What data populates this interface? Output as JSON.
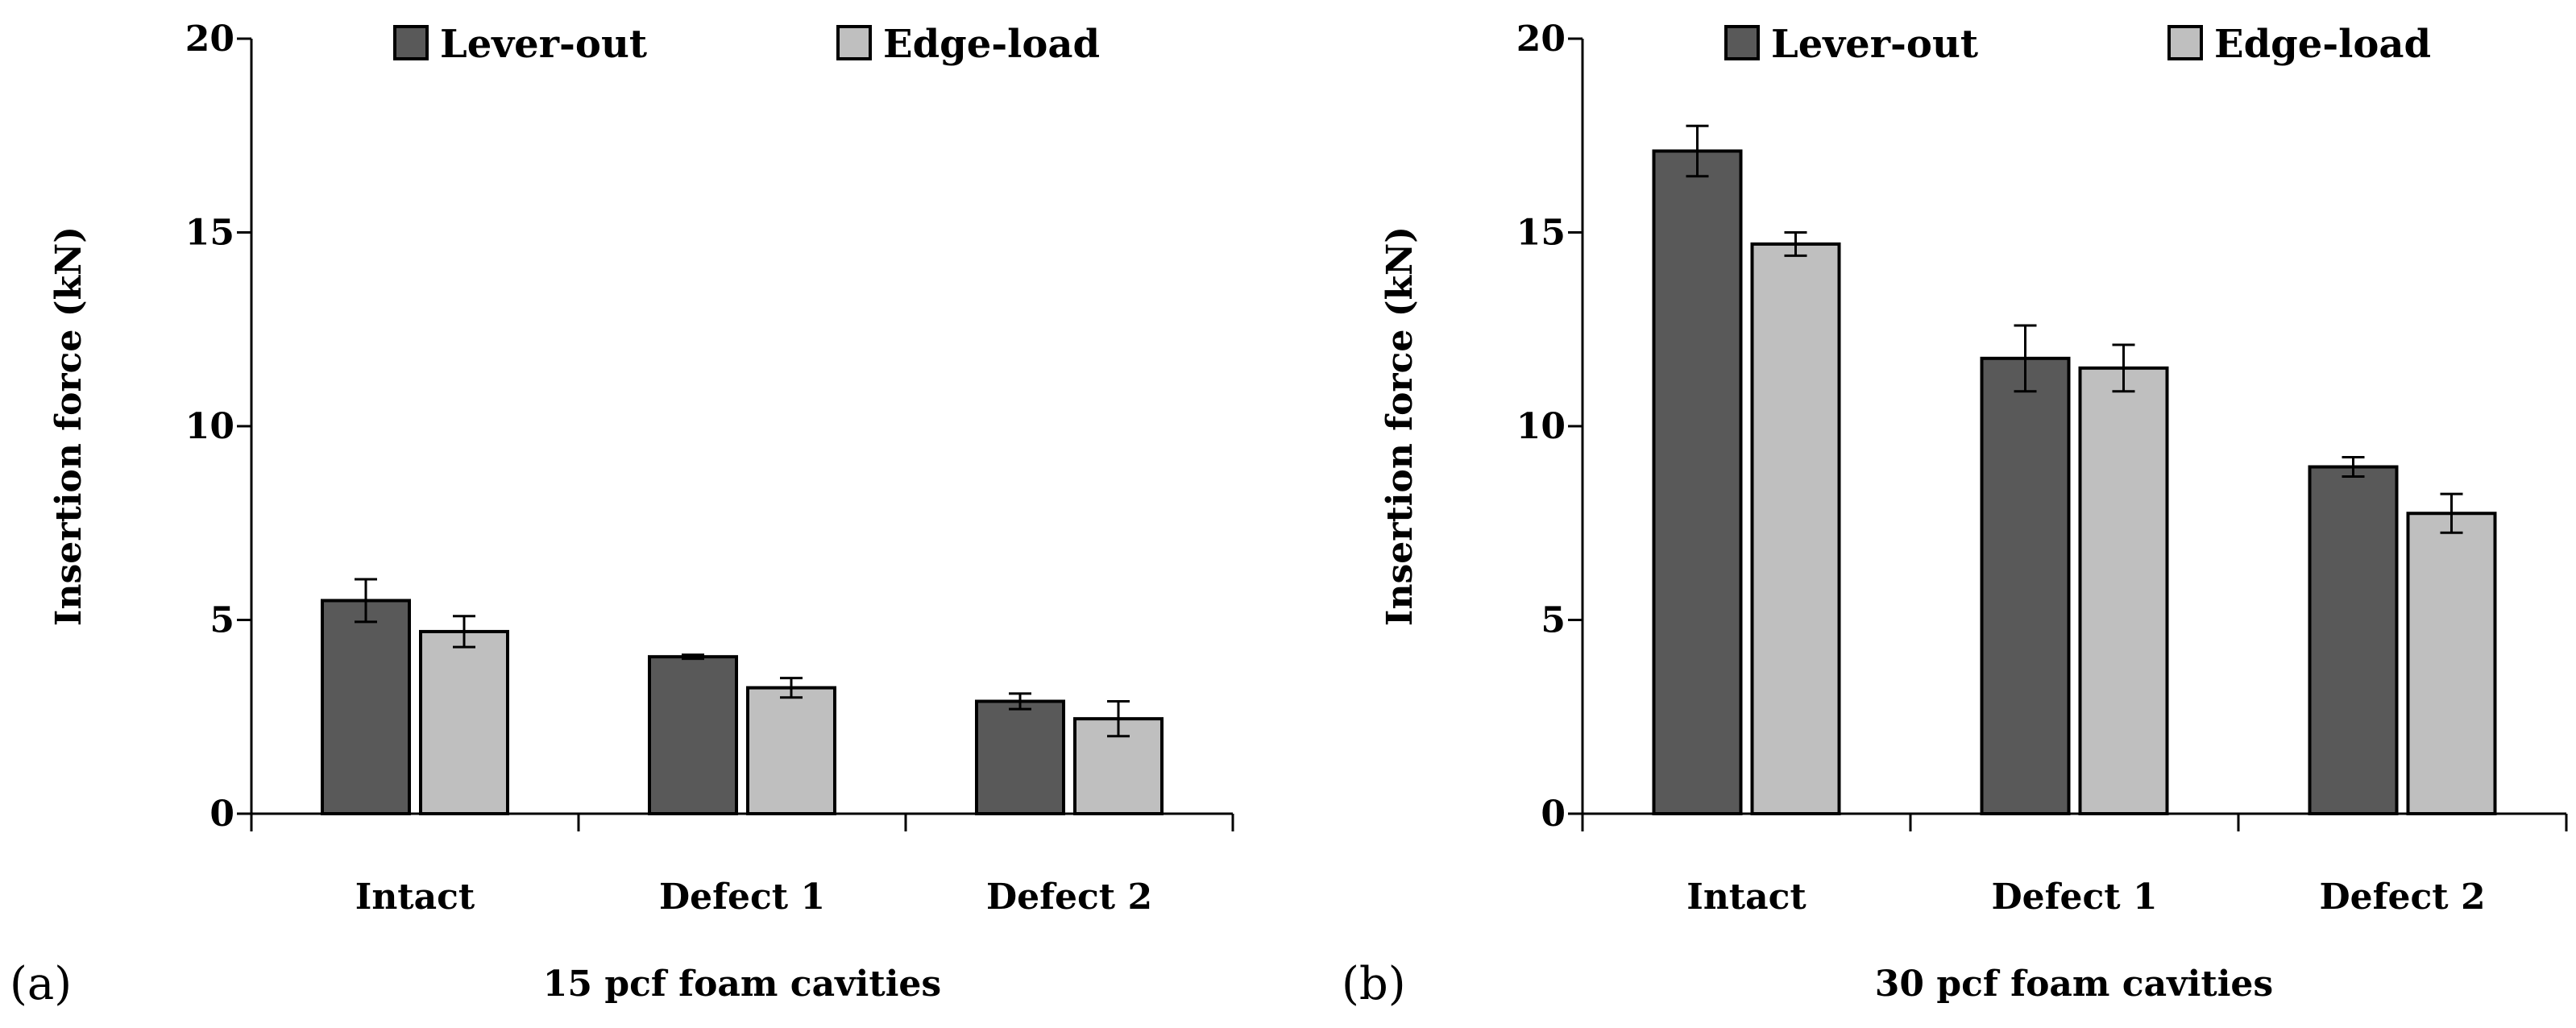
{
  "colors": {
    "Lever-out": "#595959",
    "Edge-load": "#bfbfbf",
    "outline": "#000000"
  },
  "chart_data": [
    {
      "type": "bar",
      "panel_label": "(a)",
      "xlabel": "15 pcf foam cavities",
      "ylabel": "Insertion force (kN)",
      "categories": [
        "Intact",
        "Defect 1",
        "Defect 2"
      ],
      "ylim": [
        0,
        20
      ],
      "yticks": [
        0,
        5,
        10,
        15,
        20
      ],
      "legend_position": "top",
      "grid": false,
      "series": [
        {
          "name": "Lever-out",
          "values": [
            5.5,
            4.05,
            2.9
          ],
          "errors": [
            0.55,
            0.05,
            0.2
          ]
        },
        {
          "name": "Edge-load",
          "values": [
            4.7,
            3.25,
            2.45
          ],
          "errors": [
            0.4,
            0.25,
            0.45
          ]
        }
      ]
    },
    {
      "type": "bar",
      "panel_label": "(b)",
      "xlabel": "30 pcf foam cavities",
      "ylabel": "Insertion force (kN)",
      "categories": [
        "Intact",
        "Defect 1",
        "Defect 2"
      ],
      "ylim": [
        0,
        20
      ],
      "yticks": [
        0,
        5,
        10,
        15,
        20
      ],
      "legend_position": "top",
      "grid": false,
      "series": [
        {
          "name": "Lever-out",
          "values": [
            17.1,
            11.75,
            8.95
          ],
          "errors": [
            0.65,
            0.85,
            0.25
          ]
        },
        {
          "name": "Edge-load",
          "values": [
            14.7,
            11.5,
            7.75
          ],
          "errors": [
            0.3,
            0.6,
            0.5
          ]
        }
      ]
    }
  ]
}
